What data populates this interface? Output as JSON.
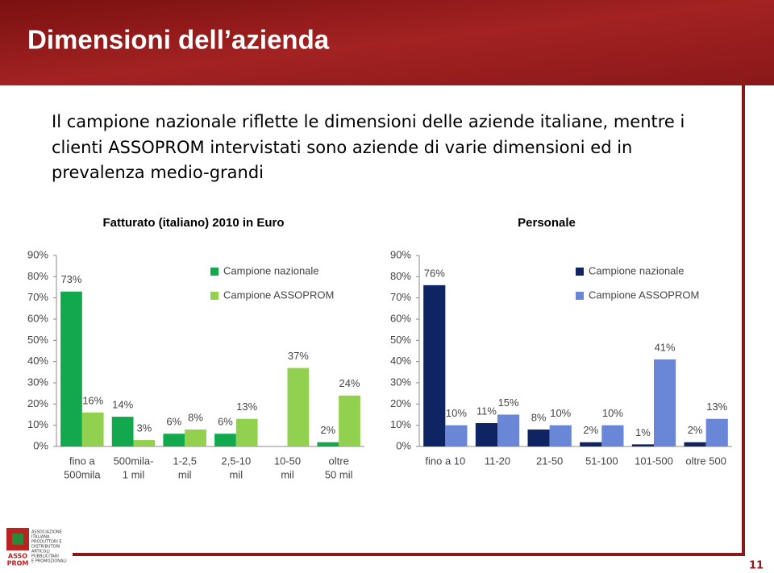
{
  "title": "Dimensioni dell’azienda",
  "text": [
    "Il campione nazionale riflette le dimensioni delle aziende italiane, mentre i",
    "clienti ASSOPROM intervistati sono aziende di varie dimensioni ed in",
    "prevalenza medio-grandi"
  ],
  "page_number": "11",
  "logo": {
    "mark": [
      "ASSO",
      "PROM"
    ],
    "lines": [
      "ASSOCIAZIONE",
      "ITALIANA",
      "PRODUTTORI E",
      "DISTRIBUTORI",
      "ARTICOLI",
      "PUBBLICITARI",
      "E PROMOZIONALI"
    ]
  },
  "chart_data": [
    {
      "type": "bar",
      "title": "Fatturato (italiano) 2010 in Euro",
      "categories": [
        [
          "fino a",
          "500mila"
        ],
        [
          "500mila-",
          "1 mil"
        ],
        [
          "1-2,5",
          "mil"
        ],
        [
          "2,5-10",
          "mil"
        ],
        [
          "10-50",
          "mil"
        ],
        [
          "oltre",
          "50 mil"
        ]
      ],
      "series": [
        {
          "name": "Campione nazionale",
          "color": "#12a84e",
          "values": [
            73,
            14,
            6,
            6,
            null,
            2
          ],
          "value_labels": [
            "73%",
            "14%",
            "6%",
            "6%",
            null,
            "2%"
          ]
        },
        {
          "name": "Campione ASSOPROM",
          "color": "#92d050",
          "values": [
            16,
            3,
            8,
            13,
            37,
            24
          ],
          "value_labels": [
            "16%",
            "3%",
            "8%",
            "13%",
            "37%",
            "24%"
          ]
        }
      ],
      "ylim": [
        0,
        90
      ],
      "yticks": [
        {
          "value": 0,
          "label": "0%"
        },
        {
          "value": 10,
          "label": "10%"
        },
        {
          "value": 20,
          "label": "20%"
        },
        {
          "value": 30,
          "label": "30%"
        },
        {
          "value": 40,
          "label": "40%"
        },
        {
          "value": 50,
          "label": "50%"
        },
        {
          "value": 60,
          "label": "60%"
        },
        {
          "value": 70,
          "label": "70%"
        },
        {
          "value": 80,
          "label": "80%"
        },
        {
          "value": 90,
          "label": "90%"
        }
      ],
      "legend": "upper right"
    },
    {
      "type": "bar",
      "title": "Personale",
      "categories": [
        "fino a 10",
        "11-20",
        "21-50",
        "51-100",
        "101-500",
        "oltre 500"
      ],
      "series": [
        {
          "name": "Campione nazionale",
          "color": "#0f2463",
          "values": [
            76,
            11,
            8,
            2,
            1,
            2
          ],
          "value_labels": [
            "76%",
            "11%",
            "8%",
            "2%",
            "1%",
            "2%"
          ]
        },
        {
          "name": "Campione ASSOPROM",
          "color": "#6a86d6",
          "values": [
            10,
            15,
            10,
            10,
            41,
            13
          ],
          "value_labels": [
            "10%",
            "15%",
            "10%",
            "10%",
            "41%",
            "13%"
          ]
        }
      ],
      "ylim": [
        0,
        90
      ],
      "yticks": [
        {
          "value": 0,
          "label": "0%"
        },
        {
          "value": 10,
          "label": "10%"
        },
        {
          "value": 20,
          "label": "20%"
        },
        {
          "value": 30,
          "label": "30%"
        },
        {
          "value": 40,
          "label": "40%"
        },
        {
          "value": 50,
          "label": "50%"
        },
        {
          "value": 60,
          "label": "60%"
        },
        {
          "value": 70,
          "label": "70%"
        },
        {
          "value": 80,
          "label": "80%"
        },
        {
          "value": 90,
          "label": "90%"
        }
      ],
      "legend": "upper right"
    }
  ]
}
